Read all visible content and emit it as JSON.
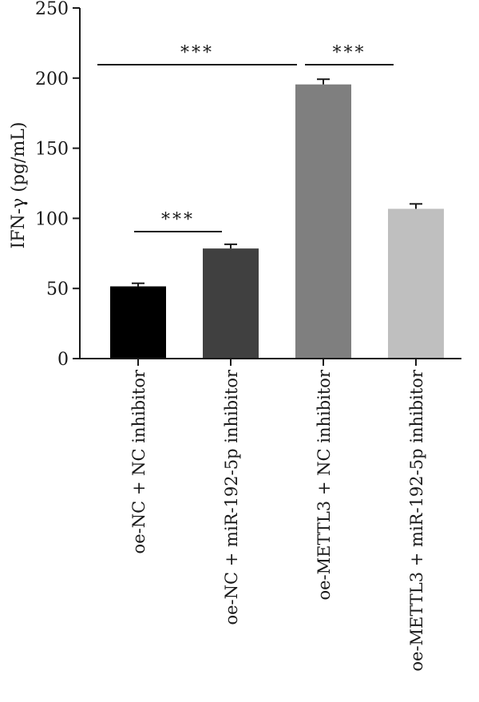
{
  "chart_data": {
    "type": "bar",
    "title": "",
    "xlabel": "",
    "ylabel": "IFN-γ (pg/mL)",
    "ylim": [
      0,
      250
    ],
    "yticks": [
      0,
      50,
      100,
      150,
      200,
      250
    ],
    "grid": false,
    "legend": "none",
    "categories": [
      "oe-NC + NC inhibitor",
      "oe-NC + miR-192-5p inhibitor",
      "oe-METTL3 + NC inhibitor",
      "oe-METTL3 + miR-192-5p inhibitor"
    ],
    "values": [
      51.5,
      78.5,
      195.5,
      106.8
    ],
    "errors": [
      2.2,
      3.0,
      3.7,
      3.5
    ],
    "colors": [
      "#000000",
      "#404040",
      "#7f7f7f",
      "#bfbfbf"
    ],
    "significance": [
      {
        "from": 0,
        "to": 1,
        "label": "***"
      },
      {
        "from": 0,
        "to": 2,
        "label": "***"
      },
      {
        "from": 2,
        "to": 3,
        "label": "***"
      }
    ]
  }
}
